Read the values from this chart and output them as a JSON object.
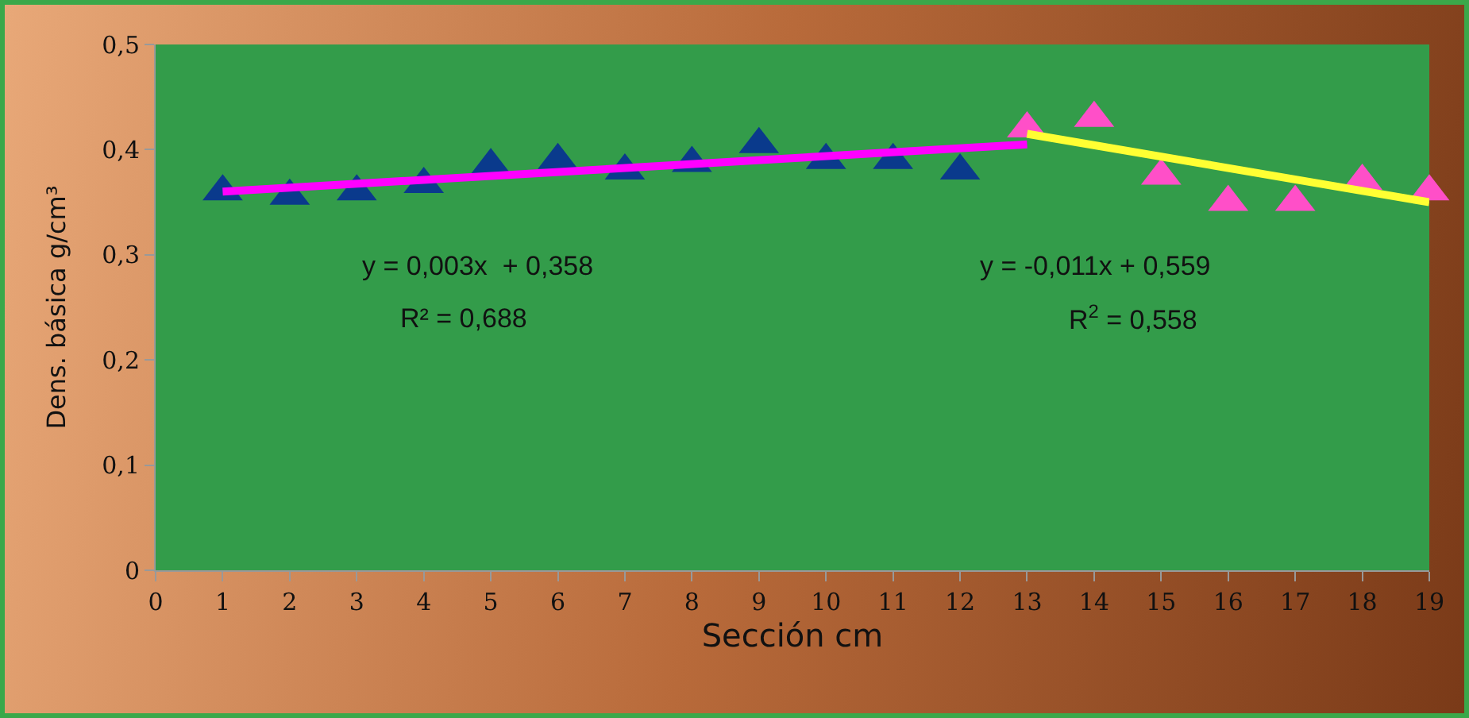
{
  "chart_data": {
    "type": "scatter",
    "xlabel": "Sección cm",
    "ylabel": "Dens. básica g/cm³",
    "xlim": [
      0,
      19
    ],
    "ylim": [
      0,
      0.5
    ],
    "xticks": [
      0,
      1,
      2,
      3,
      4,
      5,
      6,
      7,
      8,
      9,
      10,
      11,
      12,
      13,
      14,
      15,
      16,
      17,
      18,
      19
    ],
    "yticks": [
      0,
      {
        "value": 0.1,
        "label": "0,1"
      },
      {
        "value": 0.2,
        "label": "0,2"
      },
      {
        "value": 0.3,
        "label": "0,3"
      },
      {
        "value": 0.4,
        "label": "0,4"
      },
      {
        "value": 0.5,
        "label": "0,5"
      }
    ],
    "grid": false,
    "series": [
      {
        "marker": "triangle",
        "color": "#0a3a8c",
        "x": [
          1,
          2,
          3,
          4,
          5,
          6,
          7,
          8,
          9,
          10,
          11,
          12
        ],
        "values": [
          0.36,
          0.356,
          0.36,
          0.367,
          0.385,
          0.39,
          0.38,
          0.387,
          0.405,
          0.39,
          0.39,
          0.38
        ]
      },
      {
        "marker": "triangle",
        "color": "#ff4fc8",
        "x": [
          13,
          14,
          15,
          16,
          17,
          18,
          19
        ],
        "values": [
          0.42,
          0.43,
          0.375,
          0.35,
          0.35,
          0.37,
          0.36
        ]
      },
      {
        "type": "line",
        "color": "#ff00ff",
        "x": [
          1,
          13
        ],
        "values": [
          0.36,
          0.405
        ],
        "line_style": "solid",
        "marker": "none"
      },
      {
        "type": "line",
        "color": "#ffff33",
        "x": [
          13,
          19
        ],
        "values": [
          0.415,
          0.35
        ],
        "line_style": "solid",
        "marker": "none"
      }
    ],
    "annotations": [
      "y = 0,003x  + 0,358",
      "R² = 0,688",
      "y = -0,011x + 0,559",
      "R$^{2}$ = 0,558"
    ]
  }
}
